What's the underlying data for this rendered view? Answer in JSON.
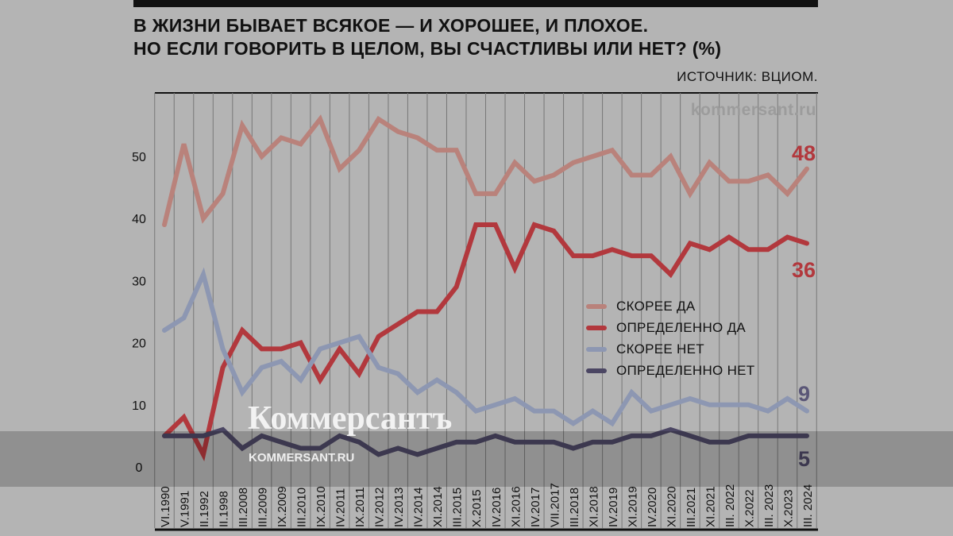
{
  "header": {
    "title_line1": "В ЖИЗНИ БЫВАЕТ ВСЯКОЕ — И ХОРОШЕЕ, И ПЛОХОЕ.",
    "title_line2": "НО ЕСЛИ ГОВОРИТЬ В ЦЕЛОМ, ВЫ СЧАСТЛИВЫ ИЛИ НЕТ? (%)",
    "source": "ИСТОЧНИК: ВЦИОМ.",
    "watermark": "kommersant.ru"
  },
  "branding": {
    "logo": "Коммерсантъ",
    "site": "KOMMERSANT.RU"
  },
  "chart_data": {
    "type": "line",
    "title": "В ЖИЗНИ БЫВАЕТ ВСЯКОЕ — И ХОРОШЕЕ, И ПЛОХОЕ. НО ЕСЛИ ГОВОРИТЬ В ЦЕЛОМ, ВЫ СЧАСТЛИВЫ ИЛИ НЕТ? (%)",
    "categories": [
      "VI.1990",
      "V.1991",
      "II.1992",
      "II.1998",
      "III.2008",
      "III.2009",
      "IX.2009",
      "III.2010",
      "IX.2010",
      "IV.2011",
      "IX.2011",
      "IV.2012",
      "IV.2013",
      "IV.2014",
      "XI.2014",
      "III.2015",
      "X.2015",
      "IV.2016",
      "XI.2016",
      "IV.2017",
      "VII.2017",
      "III.2018",
      "XI.2018",
      "IV.2019",
      "XI.2019",
      "IV.2020",
      "XI.2020",
      "III.2021",
      "XI.2021",
      "III. 2022",
      "X.2022",
      "III. 2023",
      "X.2023",
      "III. 2024"
    ],
    "yticks": [
      "0",
      "10",
      "20",
      "30",
      "40",
      "50"
    ],
    "ylim": [
      0,
      60
    ],
    "grid": "vertical",
    "legend_position": "center-right",
    "series": [
      {
        "name": "СКОРЕЕ ДА",
        "color": "#b9827b",
        "end_label": "48",
        "values": [
          39,
          52,
          40,
          44,
          55,
          50,
          53,
          52,
          56,
          48,
          51,
          56,
          54,
          53,
          51,
          51,
          44,
          44,
          49,
          46,
          47,
          49,
          50,
          51,
          47,
          47,
          50,
          44,
          49,
          46,
          46,
          47,
          44,
          48
        ]
      },
      {
        "name": "ОПРЕДЕЛЕННО ДА",
        "color": "#b2383d",
        "end_label": "36",
        "values": [
          5,
          8,
          2,
          16,
          22,
          19,
          19,
          20,
          14,
          19,
          15,
          21,
          23,
          25,
          25,
          29,
          39,
          39,
          32,
          39,
          38,
          34,
          34,
          35,
          34,
          34,
          31,
          36,
          35,
          37,
          35,
          35,
          37,
          36
        ]
      },
      {
        "name": "СКОРЕЕ НЕТ",
        "color": "#8d97b2",
        "end_label": "9",
        "values": [
          22,
          24,
          31,
          19,
          12,
          16,
          17,
          14,
          19,
          20,
          21,
          16,
          15,
          12,
          14,
          12,
          9,
          10,
          11,
          9,
          9,
          7,
          9,
          7,
          12,
          9,
          10,
          11,
          10,
          10,
          10,
          9,
          11,
          9
        ]
      },
      {
        "name": "ОПРЕДЕЛЕННО НЕТ",
        "color": "#4b4663",
        "end_label": "5",
        "values": [
          5,
          5,
          5,
          6,
          3,
          5,
          4,
          3,
          3,
          5,
          4,
          2,
          3,
          2,
          3,
          4,
          4,
          5,
          4,
          4,
          4,
          3,
          4,
          4,
          5,
          5,
          6,
          5,
          4,
          4,
          5,
          5,
          5,
          5
        ]
      }
    ]
  }
}
